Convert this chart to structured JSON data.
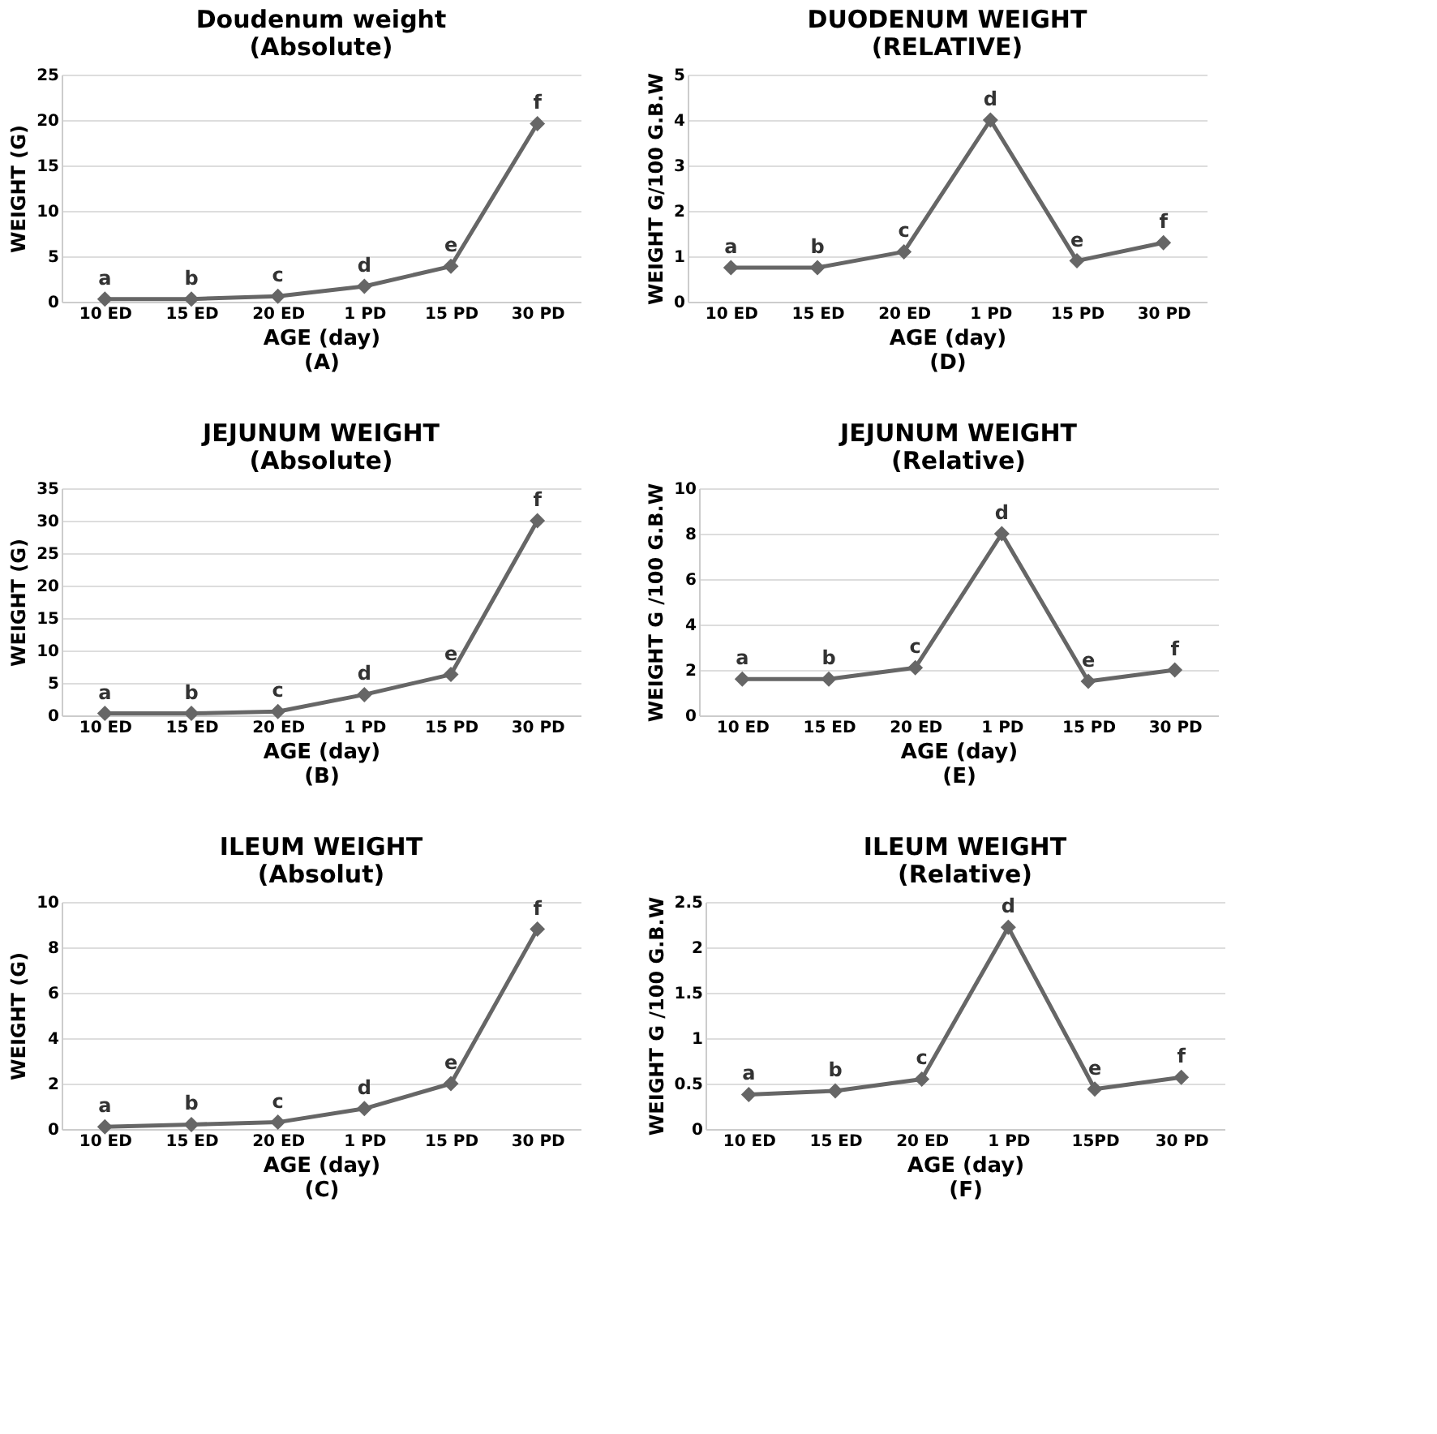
{
  "chart_data": [
    {
      "type": "line",
      "title": "Doudenum weight\n(Absolute)",
      "xlabel": "AGE (day)",
      "ylabel": "WEIGHT (G)",
      "categories": [
        "10 ED",
        "15 ED",
        "20 ED",
        "1 PD",
        "15 PD",
        "30 PD"
      ],
      "series": [
        {
          "color": "#666666",
          "values": [
            0.3,
            0.3,
            0.6,
            1.7,
            3.9,
            19.6
          ]
        }
      ],
      "ylim": [
        0,
        25
      ],
      "yticks": [
        0,
        5,
        10,
        15,
        20,
        25
      ],
      "grid": "y",
      "marker": "diamond",
      "line_style": "solid",
      "annotations": [
        {
          "text": "a",
          "x": "10 ED",
          "y": 0.3
        },
        {
          "text": "b",
          "x": "15 ED",
          "y": 0.3
        },
        {
          "text": "c",
          "x": "20 ED",
          "y": 0.6
        },
        {
          "text": "d",
          "x": "1 PD",
          "y": 1.7
        },
        {
          "text": "e",
          "x": "15 PD",
          "y": 3.9
        },
        {
          "text": "f",
          "x": "30 PD",
          "y": 19.6
        },
        "(A)"
      ]
    },
    {
      "type": "line",
      "title": "DUODENUM WEIGHT\n(RELATIVE)",
      "xlabel": "AGE (day)",
      "ylabel": "WEIGHT G/100 G.B.W",
      "categories": [
        "10 ED",
        "15 ED",
        "20 ED",
        "1 PD",
        "15 PD",
        "30 PD"
      ],
      "series": [
        {
          "color": "#666666",
          "values": [
            0.75,
            0.75,
            1.1,
            4.0,
            0.9,
            1.3
          ]
        }
      ],
      "ylim": [
        0,
        5
      ],
      "yticks": [
        0,
        1,
        2,
        3,
        4,
        5
      ],
      "grid": "y",
      "marker": "diamond",
      "line_style": "solid",
      "annotations": [
        {
          "text": "a",
          "x": "10 ED",
          "y": 0.75
        },
        {
          "text": "b",
          "x": "15 ED",
          "y": 0.75
        },
        {
          "text": "c",
          "x": "20 ED",
          "y": 1.1
        },
        {
          "text": "d",
          "x": "1 PD",
          "y": 4.0
        },
        {
          "text": "e",
          "x": "15 PD",
          "y": 0.9
        },
        {
          "text": "f",
          "x": "30 PD",
          "y": 1.3
        },
        "(D)"
      ]
    },
    {
      "type": "line",
      "title": "JEJUNUM WEIGHT\n(Absolute)",
      "xlabel": "AGE (day)",
      "ylabel": "WEIGHT (G)",
      "categories": [
        "10 ED",
        "15 ED",
        "20 ED",
        "1 PD",
        "15 PD",
        "30 PD"
      ],
      "series": [
        {
          "color": "#666666",
          "values": [
            0.3,
            0.3,
            0.6,
            3.2,
            6.3,
            30
          ]
        }
      ],
      "ylim": [
        0,
        35
      ],
      "yticks": [
        0,
        5,
        10,
        15,
        20,
        25,
        30,
        35
      ],
      "grid": "y",
      "marker": "diamond",
      "line_style": "solid",
      "annotations": [
        {
          "text": "a",
          "x": "10 ED",
          "y": 0.3
        },
        {
          "text": "b",
          "x": "15 ED",
          "y": 0.3
        },
        {
          "text": "c",
          "x": "20 ED",
          "y": 0.6
        },
        {
          "text": "d",
          "x": "1 PD",
          "y": 3.2
        },
        {
          "text": "e",
          "x": "15 PD",
          "y": 6.3
        },
        {
          "text": "f",
          "x": "30 PD",
          "y": 30
        },
        "(B)"
      ]
    },
    {
      "type": "line",
      "title": "JEJUNUM WEIGHT\n(Relative)",
      "xlabel": "AGE (day)",
      "ylabel": "WEIGHT G /100 G.B.W",
      "categories": [
        "10 ED",
        "15 ED",
        "20 ED",
        "1 PD",
        "15 PD",
        "30 PD"
      ],
      "series": [
        {
          "color": "#666666",
          "values": [
            1.6,
            1.6,
            2.1,
            8.0,
            1.5,
            2.0
          ]
        }
      ],
      "ylim": [
        0,
        10
      ],
      "yticks": [
        0,
        2,
        4,
        6,
        8,
        10
      ],
      "grid": "y",
      "marker": "diamond",
      "line_style": "solid",
      "annotations": [
        {
          "text": "a",
          "x": "10 ED",
          "y": 1.6
        },
        {
          "text": "b",
          "x": "15 ED",
          "y": 1.6
        },
        {
          "text": "c",
          "x": "20 ED",
          "y": 2.1
        },
        {
          "text": "d",
          "x": "1 PD",
          "y": 8.0
        },
        {
          "text": "e",
          "x": "15 PD",
          "y": 1.5
        },
        {
          "text": "f",
          "x": "30 PD",
          "y": 2.0
        },
        "(E)"
      ]
    },
    {
      "type": "line",
      "title": "ILEUM WEIGHT\n(Absolut)",
      "xlabel": "AGE (day)",
      "ylabel": "WEIGHT (G)",
      "categories": [
        "10 ED",
        "15 ED",
        "20 ED",
        "1 PD",
        "15 PD",
        "30 PD"
      ],
      "series": [
        {
          "color": "#666666",
          "values": [
            0.1,
            0.2,
            0.3,
            0.9,
            2,
            8.8
          ]
        }
      ],
      "ylim": [
        0,
        10
      ],
      "yticks": [
        0,
        2,
        4,
        6,
        8,
        10
      ],
      "grid": "y",
      "marker": "diamond",
      "line_style": "solid",
      "annotations": [
        {
          "text": "a",
          "x": "10 ED",
          "y": 0.1
        },
        {
          "text": "b",
          "x": "15 ED",
          "y": 0.2
        },
        {
          "text": "c",
          "x": "20 ED",
          "y": 0.3
        },
        {
          "text": "d",
          "x": "1 PD",
          "y": 0.9
        },
        {
          "text": "e",
          "x": "15 PD",
          "y": 2
        },
        {
          "text": "f",
          "x": "30 PD",
          "y": 8.8
        },
        "(C)"
      ]
    },
    {
      "type": "line",
      "title": "ILEUM WEIGHT\n(Relative)",
      "xlabel": "AGE (day)",
      "ylabel": "WEIGHT G /100 G.B.W",
      "categories": [
        "10 ED",
        "15 ED",
        "20 ED",
        "1 PD",
        "15PD",
        "30 PD"
      ],
      "series": [
        {
          "color": "#666666",
          "values": [
            0.38,
            0.42,
            0.55,
            2.22,
            0.44,
            0.57
          ]
        }
      ],
      "ylim": [
        0,
        2.5
      ],
      "yticks": [
        0,
        0.5,
        1,
        1.5,
        2,
        2.5
      ],
      "grid": "y",
      "marker": "diamond",
      "line_style": "solid",
      "annotations": [
        {
          "text": "a",
          "x": "10 ED",
          "y": 0.38
        },
        {
          "text": "b",
          "x": "15 ED",
          "y": 0.42
        },
        {
          "text": "c",
          "x": "20 ED",
          "y": 0.55
        },
        {
          "text": "d",
          "x": "1 PD",
          "y": 2.22
        },
        {
          "text": "e",
          "x": "15PD",
          "y": 0.44
        },
        {
          "text": "f",
          "x": "30 PD",
          "y": 0.57
        },
        "(F)"
      ]
    }
  ]
}
